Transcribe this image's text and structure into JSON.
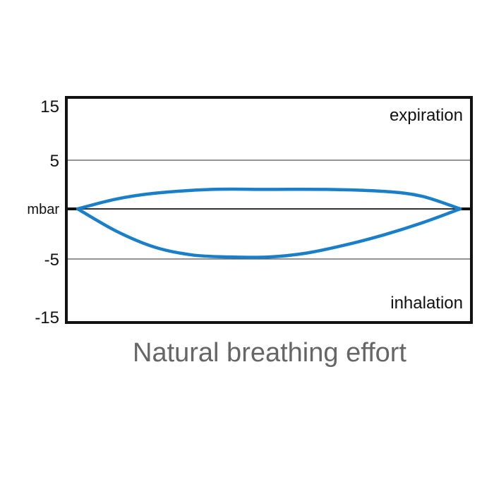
{
  "chart_data": {
    "type": "line",
    "title": "Natural breathing effort",
    "ylabel": "mbar",
    "yticks": [
      15,
      5,
      -5,
      -15
    ],
    "ytick_labels": [
      "15",
      "5",
      "-5",
      "-15"
    ],
    "ylim": [
      -15,
      15
    ],
    "grid": true,
    "annotations": {
      "top": "expiration",
      "bottom": "inhalation"
    },
    "series": [
      {
        "x": [
          0,
          10,
          20,
          35,
          50,
          65,
          80,
          90,
          100
        ],
        "y": [
          0,
          1.0,
          1.6,
          2.0,
          2.0,
          2.0,
          1.8,
          1.3,
          0
        ]
      },
      {
        "x": [
          0,
          10,
          20,
          30,
          40,
          50,
          60,
          70,
          80,
          90,
          100
        ],
        "y": [
          0,
          -2.2,
          -3.8,
          -4.6,
          -4.8,
          -4.8,
          -4.4,
          -3.6,
          -2.6,
          -1.4,
          0
        ]
      }
    ],
    "colors": {
      "curve": "#1a7fc9",
      "frame": "#111111",
      "title": "#666666"
    }
  }
}
